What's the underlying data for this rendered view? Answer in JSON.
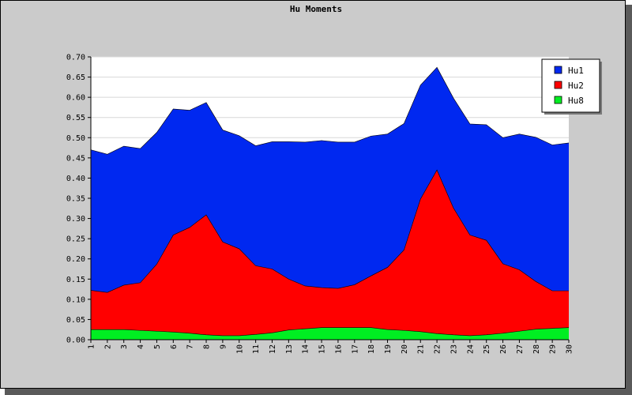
{
  "chart_data": {
    "type": "area",
    "stacked": true,
    "title": "Hu Moments",
    "xlabel": "",
    "ylabel": "",
    "x": [
      1,
      2,
      3,
      4,
      5,
      6,
      7,
      8,
      9,
      10,
      11,
      12,
      13,
      14,
      15,
      16,
      17,
      18,
      19,
      20,
      21,
      22,
      23,
      24,
      25,
      26,
      27,
      28,
      29,
      30
    ],
    "ylim": [
      0,
      0.7
    ],
    "y_ticks": [
      "0.00",
      "0.05",
      "0.10",
      "0.15",
      "0.20",
      "0.25",
      "0.30",
      "0.35",
      "0.40",
      "0.45",
      "0.50",
      "0.55",
      "0.60",
      "0.65",
      "0.70"
    ],
    "grid": true,
    "legend_position": "top-right",
    "series": [
      {
        "name": "Hu1",
        "color": "#0028f0",
        "values": [
          0.348,
          0.342,
          0.344,
          0.332,
          0.326,
          0.312,
          0.29,
          0.278,
          0.277,
          0.28,
          0.297,
          0.315,
          0.34,
          0.356,
          0.364,
          0.362,
          0.353,
          0.346,
          0.33,
          0.313,
          0.282,
          0.254,
          0.272,
          0.275,
          0.286,
          0.312,
          0.336,
          0.357,
          0.361,
          0.366
        ]
      },
      {
        "name": "Hu2",
        "color": "#ff0000",
        "values": [
          0.097,
          0.092,
          0.11,
          0.118,
          0.166,
          0.24,
          0.262,
          0.297,
          0.232,
          0.215,
          0.17,
          0.158,
          0.126,
          0.106,
          0.099,
          0.097,
          0.106,
          0.128,
          0.154,
          0.199,
          0.328,
          0.405,
          0.314,
          0.249,
          0.234,
          0.172,
          0.152,
          0.118,
          0.093,
          0.091
        ]
      },
      {
        "name": "Hu8",
        "color": "#00ee22",
        "values": [
          0.025,
          0.025,
          0.025,
          0.023,
          0.021,
          0.019,
          0.016,
          0.012,
          0.01,
          0.01,
          0.013,
          0.017,
          0.024,
          0.027,
          0.03,
          0.03,
          0.03,
          0.03,
          0.025,
          0.023,
          0.02,
          0.015,
          0.012,
          0.01,
          0.012,
          0.016,
          0.021,
          0.026,
          0.028,
          0.03
        ]
      }
    ]
  }
}
